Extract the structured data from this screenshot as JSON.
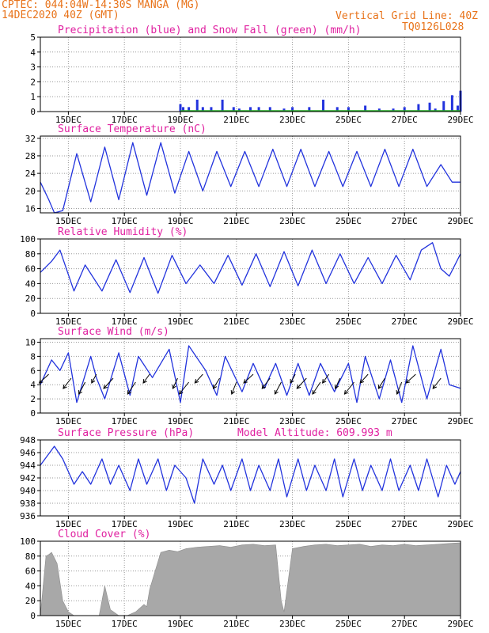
{
  "header": {
    "line1": "CPTEC:   044:04W-14:30S   MANGA (MG)",
    "line2": "14DEC2020 40Z (GMT)",
    "grid_note": "Vertical Grid Line: 40Z",
    "code": "TQ0126L028"
  },
  "colors": {
    "header": "#e8731a",
    "title": "#e020a0",
    "line": "#2233dd",
    "snow": "#22aa22",
    "cloud": "#a8a8a8"
  },
  "x_ticks": [
    "15DEC",
    "17DEC",
    "19DEC",
    "21DEC",
    "23DEC",
    "25DEC",
    "27DEC",
    "29DEC"
  ],
  "x_tick_days": [
    1,
    3,
    5,
    7,
    9,
    11,
    13,
    15
  ],
  "x_range_days": [
    0,
    15
  ],
  "chart_data": [
    {
      "type": "bar",
      "title": "Precipitation (blue) and Snow Fall (green) (mm/h)",
      "ylim": [
        0,
        5
      ],
      "yticks": [
        "0",
        "1",
        "2",
        "3",
        "4",
        "5"
      ],
      "series": [
        {
          "name": "Precipitation",
          "x": [
            5.0,
            5.1,
            5.3,
            5.6,
            5.8,
            6.1,
            6.5,
            6.9,
            7.1,
            7.5,
            7.8,
            8.2,
            8.7,
            9.0,
            9.6,
            10.1,
            10.6,
            11.0,
            11.6,
            12.1,
            12.6,
            13.0,
            13.5,
            13.9,
            14.1,
            14.4,
            14.7,
            14.9,
            15.0
          ],
          "values": [
            0.5,
            0.3,
            0.3,
            0.8,
            0.3,
            0.3,
            0.8,
            0.3,
            0.2,
            0.3,
            0.3,
            0.3,
            0.2,
            0.3,
            0.3,
            0.8,
            0.3,
            0.3,
            0.4,
            0.2,
            0.2,
            0.3,
            0.5,
            0.6,
            0.2,
            0.7,
            1.1,
            0.4,
            1.4
          ]
        },
        {
          "name": "Snow Fall",
          "x": [
            5,
            15
          ],
          "values": [
            0.05,
            0.05
          ]
        }
      ]
    },
    {
      "type": "line",
      "title": "Surface Temperature (nC)",
      "ylim": [
        15,
        32.5
      ],
      "yticks": [
        "16",
        "20",
        "24",
        "28",
        "32"
      ],
      "series": [
        {
          "name": "Temperature",
          "x": [
            0,
            0.3,
            0.5,
            0.8,
            1.3,
            1.8,
            2.3,
            2.8,
            3.3,
            3.8,
            4.3,
            4.8,
            5.3,
            5.8,
            6.3,
            6.8,
            7.3,
            7.8,
            8.3,
            8.8,
            9.3,
            9.8,
            10.3,
            10.8,
            11.3,
            11.8,
            12.3,
            12.8,
            13.3,
            13.8,
            14.3,
            14.7,
            15.0
          ],
          "values": [
            22,
            18,
            15,
            15.5,
            28.5,
            17.5,
            30,
            18,
            31,
            19,
            31,
            19.5,
            29,
            20,
            29,
            21,
            29,
            21,
            29.5,
            21,
            29.5,
            21,
            29,
            21,
            29,
            21,
            29.5,
            21,
            29.5,
            21,
            26,
            22,
            22
          ]
        }
      ]
    },
    {
      "type": "line",
      "title": "Relative Humidity (%)",
      "ylim": [
        0,
        100
      ],
      "yticks": [
        "0",
        "20",
        "40",
        "60",
        "80",
        "100"
      ],
      "series": [
        {
          "name": "Humidity",
          "x": [
            0,
            0.4,
            0.7,
            1.2,
            1.6,
            2.2,
            2.7,
            3.2,
            3.7,
            4.2,
            4.7,
            5.2,
            5.7,
            6.2,
            6.7,
            7.2,
            7.7,
            8.2,
            8.7,
            9.2,
            9.7,
            10.2,
            10.7,
            11.2,
            11.7,
            12.2,
            12.7,
            13.2,
            13.6,
            14.0,
            14.3,
            14.6,
            15.0
          ],
          "values": [
            55,
            70,
            85,
            30,
            65,
            30,
            72,
            28,
            75,
            27,
            78,
            40,
            65,
            40,
            78,
            38,
            80,
            36,
            83,
            37,
            85,
            40,
            80,
            40,
            75,
            40,
            78,
            45,
            85,
            95,
            60,
            50,
            80
          ]
        }
      ]
    },
    {
      "type": "line",
      "title": "Surface Wind (m/s)",
      "ylim": [
        0,
        10.5
      ],
      "yticks": [
        "0",
        "2",
        "4",
        "6",
        "8",
        "10"
      ],
      "series": [
        {
          "name": "Wind speed",
          "x": [
            0,
            0.4,
            0.7,
            1.0,
            1.3,
            1.8,
            2.0,
            2.3,
            2.8,
            3.2,
            3.5,
            4.0,
            4.6,
            5.0,
            5.3,
            5.9,
            6.3,
            6.6,
            7.2,
            7.6,
            8.0,
            8.4,
            8.8,
            9.2,
            9.6,
            10.0,
            10.5,
            11.0,
            11.3,
            11.6,
            12.1,
            12.5,
            12.9,
            13.3,
            13.8,
            14.3,
            14.6,
            15.0
          ],
          "values": [
            4,
            7.5,
            6,
            8.5,
            1.5,
            8,
            5,
            2,
            8.5,
            2.5,
            8,
            5,
            9,
            1.5,
            9.5,
            6,
            2.5,
            8,
            3,
            7,
            3.5,
            7,
            2.5,
            7,
            2.5,
            7,
            3,
            7,
            1.5,
            8,
            2,
            7.5,
            1.5,
            9.5,
            2,
            9,
            4,
            3.5
          ]
        }
      ],
      "arrows": [
        0.3,
        1.1,
        1.6,
        2.0,
        2.6,
        3.4,
        3.9,
        4.9,
        5.3,
        5.8,
        6.4,
        7.0,
        7.6,
        8.2,
        8.6,
        9.1,
        9.5,
        10.0,
        10.3,
        10.7,
        11.2,
        11.7,
        12.3,
        12.9,
        13.4,
        14.3
      ]
    },
    {
      "type": "line",
      "title": "Surface Pressure (hPa)",
      "subtitle": "Model Altitude: 609.993 m",
      "ylim": [
        936,
        948
      ],
      "yticks": [
        "936",
        "938",
        "940",
        "942",
        "944",
        "946",
        "948"
      ],
      "series": [
        {
          "name": "Pressure",
          "x": [
            0,
            0.5,
            0.8,
            1.2,
            1.5,
            1.8,
            2.2,
            2.5,
            2.8,
            3.2,
            3.5,
            3.8,
            4.2,
            4.5,
            4.8,
            5.2,
            5.5,
            5.8,
            6.2,
            6.5,
            6.8,
            7.2,
            7.5,
            7.8,
            8.2,
            8.5,
            8.8,
            9.2,
            9.5,
            9.8,
            10.2,
            10.5,
            10.8,
            11.2,
            11.5,
            11.8,
            12.2,
            12.5,
            12.8,
            13.2,
            13.5,
            13.8,
            14.2,
            14.5,
            14.8,
            15.0
          ],
          "values": [
            944,
            947,
            945,
            941,
            943,
            941,
            945,
            941,
            944,
            940,
            945,
            941,
            945,
            940,
            944,
            942,
            938,
            945,
            941,
            944,
            940,
            945,
            940,
            944,
            940,
            945,
            939,
            945,
            940,
            944,
            940,
            945,
            939,
            945,
            940,
            944,
            940,
            945,
            940,
            944,
            940,
            945,
            939,
            944,
            941,
            943
          ]
        }
      ]
    },
    {
      "type": "area",
      "title": "Cloud Cover (%)",
      "ylim": [
        0,
        100
      ],
      "yticks": [
        "0",
        "20",
        "40",
        "60",
        "80",
        "100"
      ],
      "series": [
        {
          "name": "Cloud cover",
          "x": [
            0.0,
            0.2,
            0.3,
            0.4,
            0.6,
            0.8,
            1.0,
            1.2,
            1.5,
            1.8,
            2.1,
            2.3,
            2.5,
            2.8,
            3.1,
            3.4,
            3.7,
            3.8,
            3.9,
            4.1,
            4.3,
            4.6,
            4.9,
            5.2,
            5.6,
            6.0,
            6.4,
            6.8,
            7.2,
            7.6,
            8.0,
            8.4,
            8.6,
            8.7,
            9.0,
            9.4,
            9.8,
            10.2,
            10.6,
            11.0,
            11.4,
            11.8,
            12.2,
            12.6,
            13.0,
            13.4,
            13.8,
            14.2,
            14.6,
            15.0
          ],
          "values": [
            0,
            80,
            82,
            85,
            70,
            20,
            5,
            0,
            0,
            0,
            0,
            40,
            8,
            0,
            0,
            5,
            15,
            12,
            35,
            60,
            85,
            88,
            86,
            90,
            92,
            93,
            94,
            92,
            95,
            96,
            94,
            95,
            20,
            5,
            90,
            93,
            95,
            96,
            94,
            95,
            96,
            93,
            95,
            94,
            96,
            94,
            95,
            96,
            97,
            98
          ]
        }
      ]
    }
  ]
}
